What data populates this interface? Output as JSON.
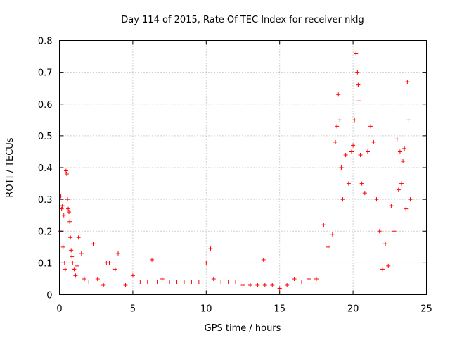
{
  "chart_data": {
    "type": "scatter",
    "title": "Day 114 of 2015, Rate Of TEC Index for receiver nklg",
    "xlabel": "GPS time / hours",
    "ylabel": "ROTI / TECUs",
    "xlim": [
      0,
      25
    ],
    "ylim": [
      0,
      0.8
    ],
    "xticks": [
      0,
      5,
      10,
      15,
      20,
      25
    ],
    "yticks": [
      0,
      0.1,
      0.2,
      0.3,
      0.4,
      0.5,
      0.6,
      0.7,
      0.8
    ],
    "grid": true,
    "marker": "plus",
    "color": "#ff0000",
    "series": [
      {
        "x": [
          0.05,
          0.1,
          0.15,
          0.2,
          0.25,
          0.3,
          0.35,
          0.4,
          0.45,
          0.5,
          0.55,
          0.6,
          0.65,
          0.7,
          0.75,
          0.8,
          0.85,
          0.9,
          1.0,
          1.1,
          1.2,
          1.3,
          1.5,
          1.7,
          2.0,
          2.3,
          2.6,
          3.0,
          3.2,
          3.4,
          3.8,
          4.0,
          4.5,
          5.0,
          5.5,
          6.0,
          6.3,
          6.7,
          7.0,
          7.5,
          8.0,
          8.5,
          9.0,
          9.5,
          10.0,
          10.3,
          10.5,
          11.0,
          11.5,
          12.0,
          12.5,
          13.0,
          13.5,
          13.9,
          14.0,
          14.5,
          15.0,
          15.5,
          16.0,
          16.5,
          17.0,
          17.5,
          18.0,
          18.3,
          18.6,
          18.8,
          18.9,
          19.0,
          19.1,
          19.2,
          19.3,
          19.5,
          19.7,
          19.9,
          20.0,
          20.1,
          20.2,
          20.3,
          20.35,
          20.4,
          20.5,
          20.6,
          20.8,
          21.0,
          21.2,
          21.4,
          21.6,
          21.8,
          22.0,
          22.2,
          22.4,
          22.6,
          22.8,
          23.0,
          23.1,
          23.2,
          23.3,
          23.4,
          23.5,
          23.6,
          23.7,
          23.8,
          23.9
        ],
        "y": [
          0.2,
          0.31,
          0.27,
          0.28,
          0.15,
          0.25,
          0.1,
          0.08,
          0.39,
          0.38,
          0.3,
          0.27,
          0.26,
          0.23,
          0.18,
          0.14,
          0.12,
          0.1,
          0.08,
          0.06,
          0.09,
          0.18,
          0.13,
          0.05,
          0.04,
          0.16,
          0.05,
          0.03,
          0.1,
          0.1,
          0.08,
          0.13,
          0.03,
          0.06,
          0.04,
          0.04,
          0.11,
          0.04,
          0.05,
          0.04,
          0.04,
          0.04,
          0.04,
          0.04,
          0.1,
          0.145,
          0.05,
          0.04,
          0.04,
          0.04,
          0.03,
          0.03,
          0.03,
          0.11,
          0.03,
          0.03,
          0.02,
          0.03,
          0.05,
          0.04,
          0.05,
          0.05,
          0.22,
          0.15,
          0.19,
          0.48,
          0.53,
          0.63,
          0.55,
          0.4,
          0.3,
          0.44,
          0.35,
          0.45,
          0.47,
          0.55,
          0.76,
          0.7,
          0.66,
          0.61,
          0.44,
          0.35,
          0.32,
          0.45,
          0.53,
          0.48,
          0.3,
          0.2,
          0.08,
          0.16,
          0.09,
          0.28,
          0.2,
          0.49,
          0.33,
          0.45,
          0.35,
          0.42,
          0.46,
          0.27,
          0.67,
          0.55,
          0.3
        ]
      }
    ]
  }
}
